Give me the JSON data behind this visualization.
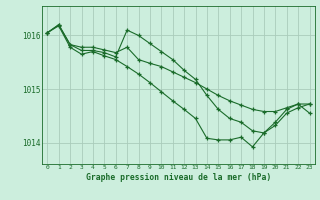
{
  "title": "Graphe pression niveau de la mer (hPa)",
  "background_color": "#cceedd",
  "line_color": "#1a6b2a",
  "grid_color": "#aaccbb",
  "xlim": [
    -0.5,
    23.5
  ],
  "ylim": [
    1013.6,
    1016.55
  ],
  "yticks": [
    1014,
    1015,
    1016
  ],
  "xticks": [
    0,
    1,
    2,
    3,
    4,
    5,
    6,
    7,
    8,
    9,
    10,
    11,
    12,
    13,
    14,
    15,
    16,
    17,
    18,
    19,
    20,
    21,
    22,
    23
  ],
  "series": [
    {
      "x": [
        0,
        1,
        2,
        3,
        4,
        5,
        6,
        7,
        8,
        9,
        10,
        11,
        12,
        13,
        14,
        15,
        16,
        17,
        18,
        19,
        20,
        21,
        22,
        23
      ],
      "y": [
        1016.05,
        1016.2,
        1015.83,
        1015.78,
        1015.78,
        1015.73,
        1015.68,
        1015.78,
        1015.55,
        1015.48,
        1015.42,
        1015.32,
        1015.22,
        1015.12,
        1015.0,
        1014.88,
        1014.78,
        1014.7,
        1014.62,
        1014.58,
        1014.58,
        1014.65,
        1014.72,
        1014.72
      ]
    },
    {
      "x": [
        0,
        1,
        2,
        3,
        4,
        5,
        6,
        7,
        8,
        9,
        10,
        11,
        12,
        13,
        14,
        15,
        16,
        17,
        18,
        19,
        20,
        21,
        22,
        23
      ],
      "y": [
        1016.05,
        1016.2,
        1015.83,
        1015.72,
        1015.72,
        1015.68,
        1015.6,
        1016.1,
        1016.0,
        1015.85,
        1015.7,
        1015.55,
        1015.35,
        1015.18,
        1014.88,
        1014.62,
        1014.45,
        1014.38,
        1014.22,
        1014.18,
        1014.32,
        1014.55,
        1014.65,
        1014.72
      ]
    },
    {
      "x": [
        0,
        1,
        2,
        3,
        4,
        5,
        6,
        7,
        8,
        9,
        10,
        11,
        12,
        13,
        14,
        15,
        16,
        17,
        18,
        19,
        20,
        21,
        22,
        23
      ],
      "y": [
        1016.05,
        1016.18,
        1015.78,
        1015.65,
        1015.7,
        1015.62,
        1015.55,
        1015.42,
        1015.28,
        1015.12,
        1014.95,
        1014.78,
        1014.62,
        1014.45,
        1014.08,
        1014.05,
        1014.05,
        1014.1,
        1013.92,
        1014.18,
        1014.38,
        1014.62,
        1014.72,
        1014.55
      ]
    }
  ]
}
